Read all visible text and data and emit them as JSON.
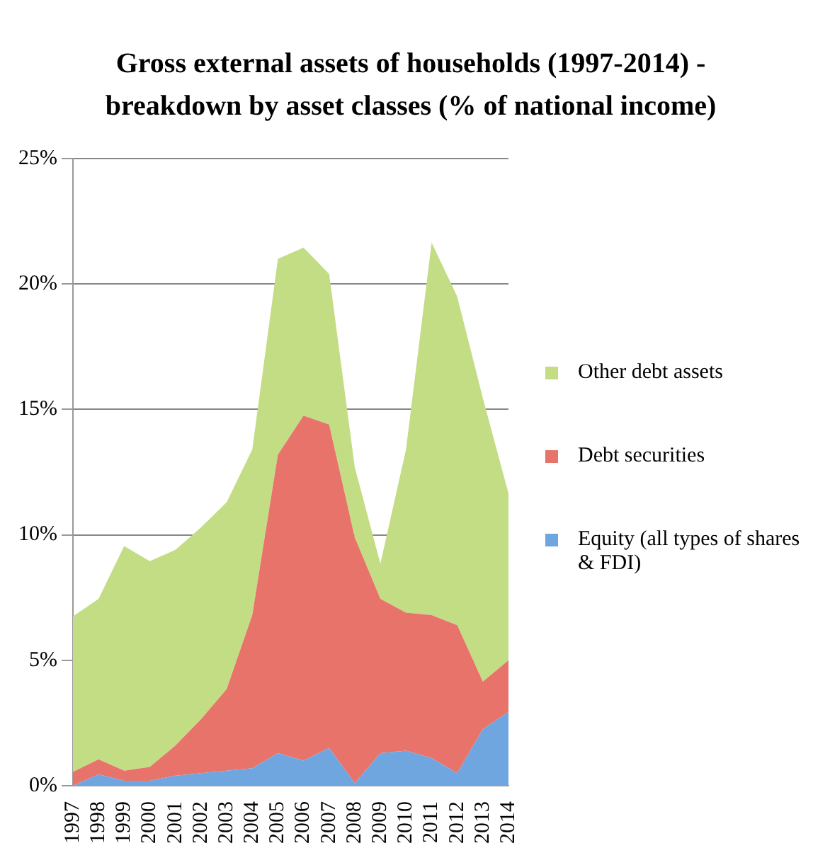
{
  "chart_data": {
    "type": "area",
    "stacked": true,
    "title": "Gross external assets of households (1997-2014) - breakdown by asset classes (% of national income)",
    "categories": [
      "1997",
      "1998",
      "1999",
      "2000",
      "2001",
      "2002",
      "2003",
      "2004",
      "2005",
      "2006",
      "2007",
      "2008",
      "2009",
      "2010",
      "2011",
      "2012",
      "2013",
      "2014"
    ],
    "series": [
      {
        "name": "Equity (all types of shares & FDI)",
        "color": "#6fa6e0",
        "values": [
          0,
          0.45,
          0.2,
          0.2,
          0.4,
          0.5,
          0.6,
          0.7,
          1.3,
          1.0,
          1.5,
          0.1,
          1.3,
          1.4,
          1.1,
          0.5,
          2.25,
          2.95
        ]
      },
      {
        "name": "Debt securities",
        "color": "#e8736a",
        "values": [
          0.55,
          0.6,
          0.4,
          0.55,
          1.2,
          2.15,
          3.25,
          6.1,
          11.9,
          13.75,
          12.9,
          9.8,
          6.15,
          5.5,
          5.7,
          5.9,
          1.9,
          2.05
        ]
      },
      {
        "name": "Other debt assets",
        "color": "#c3dd85",
        "values": [
          6.2,
          6.4,
          8.95,
          8.2,
          7.8,
          7.65,
          7.45,
          6.6,
          7.8,
          6.7,
          6.0,
          2.8,
          1.4,
          6.5,
          14.85,
          13.1,
          11.3,
          6.65
        ]
      }
    ],
    "ylim": [
      0,
      25
    ],
    "yticks": [
      {
        "value": 0,
        "label": "0%"
      },
      {
        "value": 5,
        "label": "5%"
      },
      {
        "value": 10,
        "label": "10%"
      },
      {
        "value": 15,
        "label": "15%"
      },
      {
        "value": 20,
        "label": "20%"
      },
      {
        "value": 25,
        "label": "25%"
      }
    ],
    "grid": "y",
    "legend": "right"
  }
}
